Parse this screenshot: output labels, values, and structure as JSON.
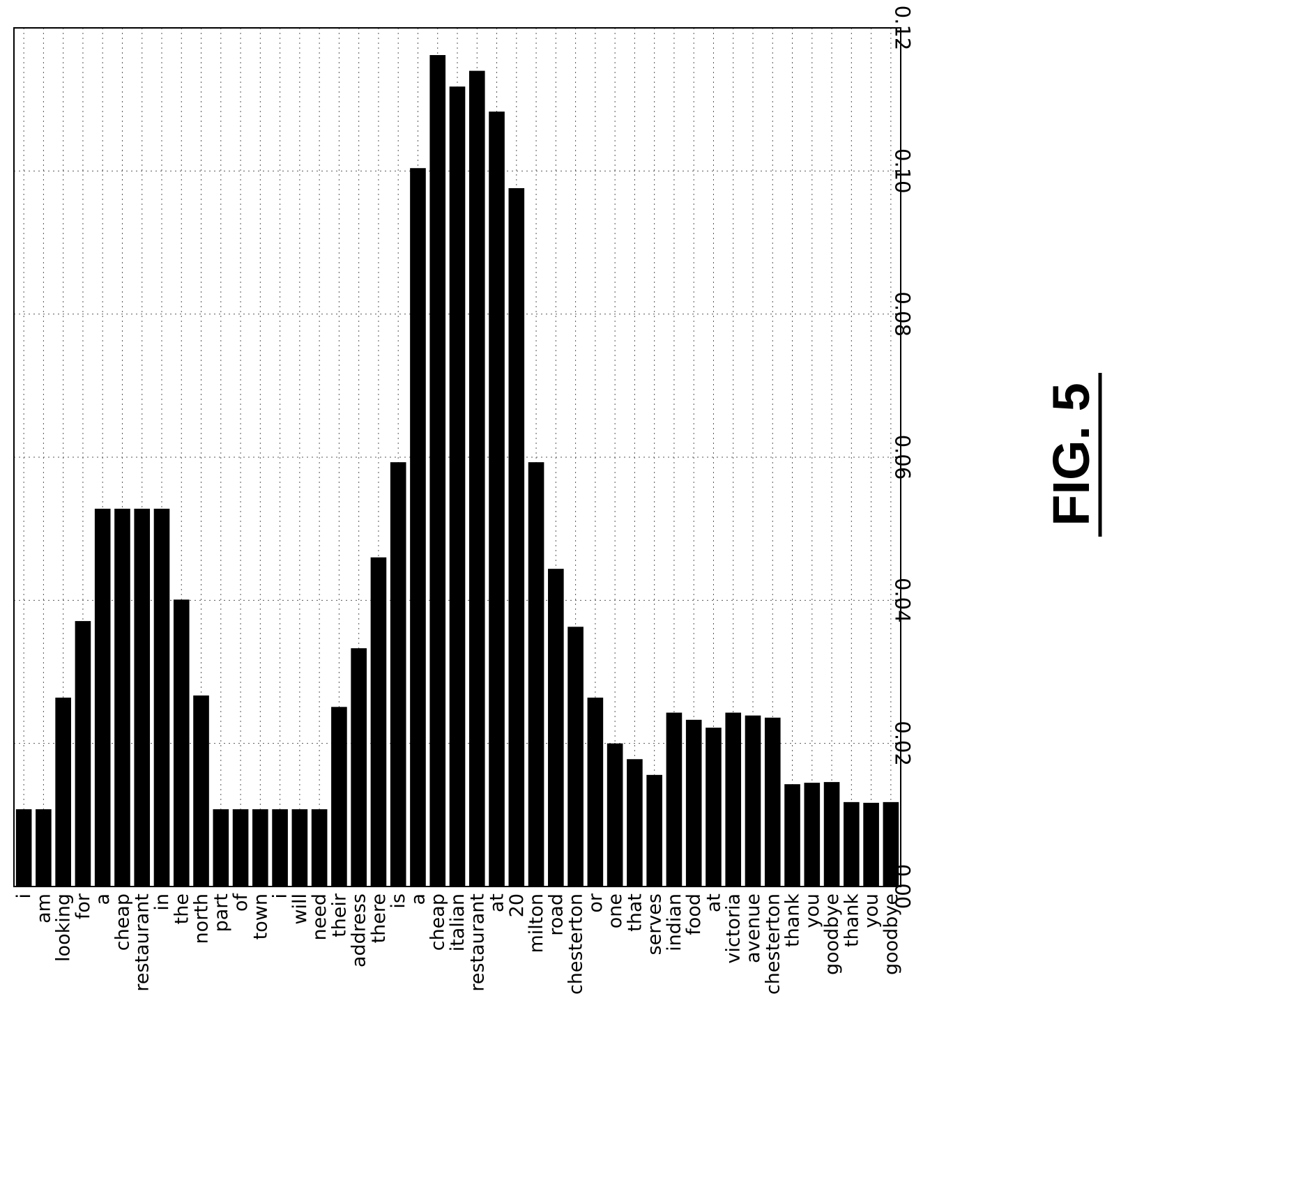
{
  "chart_data": {
    "type": "bar",
    "orientation": "horizontal-bars-rotated",
    "figure_label": "FIG. 5",
    "title": "",
    "xlabel": "",
    "ylabel": "",
    "ylim": [
      0.0,
      0.12
    ],
    "y_ticks": [
      "0.00",
      "0.02",
      "0.04",
      "0.06",
      "0.08",
      "0.10",
      "0.12"
    ],
    "grid": true,
    "categories": [
      "i",
      "am",
      "looking",
      "for",
      "a",
      "cheap",
      "restaurant",
      "in",
      "the",
      "north",
      "part",
      "of",
      "town",
      "i",
      "will",
      "need",
      "their",
      "address",
      "there",
      "is",
      "a",
      "cheap",
      "italian",
      "restaurant",
      "at",
      "20",
      "milton",
      "road",
      "chesterton",
      "or",
      "one",
      "that",
      "serves",
      "indian",
      "food",
      "at",
      "victoria",
      "avenue",
      "chesterton",
      "thank",
      "you",
      "goodbye",
      "thank",
      "you",
      "goodbye"
    ],
    "values": [
      0.0108,
      0.0108,
      0.0264,
      0.0371,
      0.0528,
      0.0528,
      0.0528,
      0.0528,
      0.0401,
      0.0267,
      0.0108,
      0.0108,
      0.0108,
      0.0108,
      0.0108,
      0.0108,
      0.0251,
      0.0333,
      0.046,
      0.0593,
      0.1004,
      0.1162,
      0.1118,
      0.114,
      0.1083,
      0.0976,
      0.0593,
      0.0444,
      0.0363,
      0.0264,
      0.02,
      0.0178,
      0.0156,
      0.0243,
      0.0233,
      0.0222,
      0.0243,
      0.0239,
      0.0236,
      0.0143,
      0.0145,
      0.0146,
      0.0118,
      0.0117,
      0.0118
    ],
    "bar_color": "#000000"
  }
}
